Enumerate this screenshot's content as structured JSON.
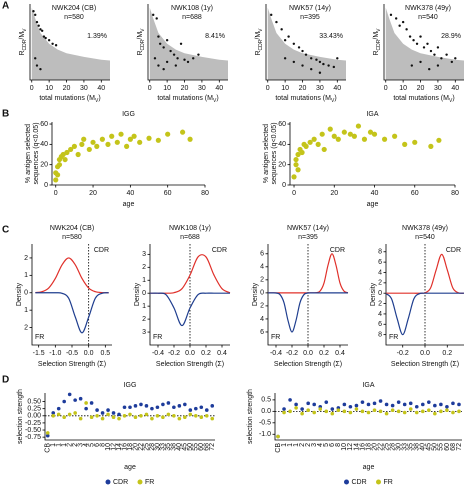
{
  "panel_labels": [
    "A",
    "B",
    "C",
    "D"
  ],
  "chart_data": [
    {
      "type": "scatter",
      "title": "NWK204 (CB)",
      "subtitle": "n=580",
      "annotation": "1.39%",
      "color": "#111111",
      "area_color": "#bdbdbd",
      "x": [
        1,
        2,
        3,
        4,
        5,
        6,
        7,
        8,
        10,
        12,
        14,
        3,
        5,
        2
      ],
      "values": [
        0.95,
        0.9,
        0.8,
        0.75,
        0.7,
        0.68,
        0.6,
        0.58,
        0.55,
        0.5,
        0.48,
        0.2,
        0.15,
        0.3
      ],
      "area": {
        "x": [
          0,
          2,
          5,
          10,
          15,
          20,
          30,
          40,
          45
        ],
        "values": [
          1.0,
          0.85,
          0.65,
          0.5,
          0.42,
          0.37,
          0.32,
          0.28,
          0.27
        ]
      },
      "xlim": [
        -1,
        45
      ],
      "ylim": [
        0,
        1.05
      ],
      "xticks": [
        0,
        10,
        20,
        30,
        40
      ],
      "x_label": [
        "total mutations (M",
        "V",
        ")"
      ],
      "y_label": [
        "R",
        "CDR",
        "/M",
        "V"
      ]
    },
    {
      "type": "scatter",
      "title": "NWK108 (1y)",
      "subtitle": "n=688",
      "annotation": "8.41%",
      "color": "#111111",
      "area_color": "#bdbdbd",
      "x": [
        2,
        4,
        5,
        6,
        8,
        10,
        12,
        14,
        16,
        18,
        20,
        22,
        25,
        28,
        5,
        8,
        10,
        15,
        3
      ],
      "values": [
        0.9,
        0.85,
        0.6,
        0.5,
        0.45,
        0.55,
        0.4,
        0.35,
        0.3,
        0.5,
        0.28,
        0.25,
        0.3,
        0.35,
        0.2,
        0.15,
        0.25,
        0.2,
        0.3
      ],
      "area": {
        "x": [
          0,
          2,
          5,
          10,
          15,
          20,
          30,
          40,
          45
        ],
        "values": [
          1.0,
          0.85,
          0.65,
          0.5,
          0.42,
          0.37,
          0.32,
          0.28,
          0.27
        ]
      },
      "xlim": [
        -1,
        45
      ],
      "ylim": [
        0,
        1.05
      ],
      "xticks": [
        0,
        10,
        20,
        30,
        40
      ],
      "x_label": [
        "total mutations (M",
        "V",
        ")"
      ],
      "y_label": [
        "R",
        "CDR",
        "/M",
        "V"
      ]
    },
    {
      "type": "scatter",
      "title": "NWK57 (14y)",
      "subtitle": "n=395",
      "annotation": "33.43%",
      "color": "#111111",
      "area_color": "#bdbdbd",
      "x": [
        2,
        5,
        8,
        10,
        12,
        15,
        18,
        20,
        22,
        25,
        28,
        30,
        32,
        35,
        38,
        40,
        10,
        15,
        20,
        25,
        30
      ],
      "values": [
        0.9,
        0.8,
        0.7,
        0.55,
        0.6,
        0.5,
        0.45,
        0.4,
        0.35,
        0.3,
        0.28,
        0.25,
        0.22,
        0.2,
        0.18,
        0.3,
        0.3,
        0.25,
        0.2,
        0.15,
        0.1
      ],
      "area": {
        "x": [
          0,
          2,
          5,
          10,
          15,
          20,
          30,
          40,
          45
        ],
        "values": [
          1.0,
          0.85,
          0.65,
          0.5,
          0.42,
          0.37,
          0.32,
          0.28,
          0.27
        ]
      },
      "xlim": [
        -1,
        45
      ],
      "ylim": [
        0,
        1.05
      ],
      "xticks": [
        0,
        10,
        20,
        30,
        40
      ],
      "x_label": [
        "total mutations (M",
        "V",
        ")"
      ],
      "y_label": [
        "R",
        "CDR",
        "/M",
        "V"
      ]
    },
    {
      "type": "scatter",
      "title": "NWK378 (49y)",
      "subtitle": "n=540",
      "annotation": "28.9%",
      "color": "#111111",
      "area_color": "#bdbdbd",
      "x": [
        3,
        6,
        8,
        10,
        12,
        14,
        16,
        18,
        20,
        22,
        24,
        26,
        28,
        30,
        32,
        35,
        38,
        40,
        15,
        20,
        25,
        30
      ],
      "values": [
        0.9,
        0.85,
        0.75,
        0.8,
        0.7,
        0.6,
        0.55,
        0.5,
        0.6,
        0.45,
        0.5,
        0.4,
        0.35,
        0.45,
        0.3,
        0.35,
        0.25,
        0.3,
        0.2,
        0.25,
        0.15,
        0.2
      ],
      "area": {
        "x": [
          0,
          2,
          5,
          10,
          15,
          20,
          30,
          40,
          45
        ],
        "values": [
          1.0,
          0.85,
          0.65,
          0.5,
          0.42,
          0.37,
          0.32,
          0.28,
          0.27
        ]
      },
      "xlim": [
        -1,
        45
      ],
      "ylim": [
        0,
        1.05
      ],
      "xticks": [
        0,
        10,
        20,
        30,
        40
      ],
      "x_label": [
        "total mutations (M",
        "V",
        ")"
      ],
      "y_label": [
        "R",
        "CDR",
        "/M",
        "V"
      ]
    },
    {
      "type": "scatter",
      "title": "IGG",
      "color": "#c4c41a",
      "x": [
        0,
        0,
        1,
        1,
        2,
        2,
        3,
        4,
        5,
        6,
        8,
        10,
        12,
        14,
        15,
        18,
        20,
        22,
        25,
        28,
        30,
        33,
        35,
        38,
        40,
        42,
        45,
        50,
        55,
        60,
        68,
        72
      ],
      "values": [
        5,
        12,
        10,
        18,
        20,
        25,
        28,
        30,
        25,
        32,
        35,
        38,
        30,
        40,
        45,
        35,
        42,
        38,
        45,
        40,
        48,
        42,
        50,
        38,
        45,
        48,
        42,
        46,
        44,
        50,
        52,
        45
      ],
      "xlim": [
        -2,
        80
      ],
      "ylim": [
        0,
        62
      ],
      "xticks": [
        0,
        20,
        40,
        60,
        80
      ],
      "yticks": [
        0,
        20,
        40,
        60
      ],
      "x_label": "age",
      "y_label": [
        "% antigen selected",
        "sequences (q<0.05)"
      ]
    },
    {
      "type": "scatter",
      "title": "IGA",
      "color": "#c4c41a",
      "x": [
        0,
        1,
        1,
        2,
        2,
        3,
        4,
        5,
        6,
        8,
        10,
        12,
        14,
        15,
        18,
        20,
        22,
        25,
        28,
        30,
        32,
        35,
        38,
        40,
        45,
        50,
        55,
        60,
        68,
        72
      ],
      "values": [
        8,
        20,
        25,
        15,
        30,
        35,
        32,
        40,
        38,
        42,
        45,
        40,
        50,
        35,
        55,
        48,
        45,
        52,
        50,
        48,
        58,
        45,
        52,
        50,
        45,
        48,
        40,
        42,
        38,
        44
      ],
      "xlim": [
        -2,
        80
      ],
      "ylim": [
        0,
        62
      ],
      "xticks": [
        0,
        20,
        40,
        60,
        80
      ],
      "yticks": [
        0,
        20,
        40,
        60
      ],
      "x_label": "age",
      "y_label": [
        "% antigen selected",
        "sequences (q<0.05)"
      ]
    },
    {
      "type": "line",
      "title": "NWK204 (CB)",
      "subtitle": "n=580",
      "vline": 0,
      "x": [
        -1.6,
        -1.4,
        -1.2,
        -1.0,
        -0.8,
        -0.6,
        -0.4,
        -0.2,
        0,
        0.2,
        0.4,
        0.6
      ],
      "series": [
        {
          "name": "CDR",
          "color": "#e0302a",
          "values": [
            0.01,
            0.06,
            0.27,
            0.82,
            1.6,
            2.0,
            1.6,
            0.82,
            0.27,
            0.06,
            0.01,
            0
          ]
        },
        {
          "name": "FR",
          "color": "#1f3e8f",
          "values": [
            0,
            0,
            0,
            0,
            -0.03,
            -0.31,
            -1.4,
            -2.3,
            -1.4,
            -0.31,
            -0.03,
            0
          ]
        }
      ],
      "xlim": [
        -1.7,
        0.7
      ],
      "ylim": [
        -3,
        2.8
      ],
      "xticks": [
        -1.5,
        {
          "value": -1,
          "label": "-1.0"
        },
        -0.5,
        {
          "value": 0,
          "label": "0.0"
        },
        0.5
      ],
      "yticks": [
        {
          "value": -2,
          "label": "2"
        },
        {
          "value": -1,
          "label": "1"
        },
        0,
        1,
        2
      ],
      "x_label": "Selection Strength (Σ)",
      "y_label": "Density"
    },
    {
      "type": "line",
      "title": "NWK108 (1y)",
      "subtitle": "n=688",
      "vline": 0,
      "x": [
        -0.5,
        -0.4,
        -0.3,
        -0.2,
        -0.1,
        0,
        0.1,
        0.2,
        0.3,
        0.4,
        0.5
      ],
      "series": [
        {
          "name": "CDR",
          "color": "#e0302a",
          "values": [
            0,
            0,
            0,
            0.04,
            0.35,
            1.4,
            2.8,
            2.8,
            1.4,
            0.35,
            0.04
          ]
        },
        {
          "name": "FR",
          "color": "#1f3e8f",
          "values": [
            0,
            0,
            -0.11,
            -1.14,
            -2.5,
            -1.14,
            -0.11,
            0,
            0,
            0,
            0
          ]
        }
      ],
      "xlim": [
        -0.5,
        0.5
      ],
      "ylim": [
        -4,
        3.8
      ],
      "xticks": [
        -0.4,
        -0.2,
        {
          "value": 0,
          "label": "0.0"
        },
        0.2,
        0.4
      ],
      "yticks": [
        {
          "value": -3,
          "label": "3"
        },
        {
          "value": -2,
          "label": "2"
        },
        {
          "value": -1,
          "label": "1"
        },
        0,
        1,
        2,
        3
      ],
      "x_label": "Selection Strength (Σ)",
      "y_label": "Density"
    },
    {
      "type": "line",
      "title": "NWK57 (14y)",
      "subtitle": "n=395",
      "vline": 0,
      "x": [
        -0.5,
        -0.45,
        -0.4,
        -0.35,
        -0.3,
        -0.25,
        -0.2,
        -0.15,
        -0.1,
        -0.05,
        0,
        0.05,
        0.1,
        0.15,
        0.2,
        0.25,
        0.3,
        0.35,
        0.4,
        0.45,
        0.5
      ],
      "series": [
        {
          "name": "CDR",
          "color": "#e0302a",
          "values": [
            0,
            0,
            0,
            0,
            0,
            0,
            0,
            0,
            0,
            0,
            0,
            0,
            0.02,
            0.26,
            1.5,
            4.24,
            6,
            4.24,
            1.5,
            0.26,
            0.02
          ]
        },
        {
          "name": "FR",
          "color": "#1f3e8f",
          "values": [
            0,
            0,
            -0.02,
            -0.26,
            -1.5,
            -4.24,
            -6,
            -4.24,
            -1.5,
            -0.26,
            -0.02,
            0,
            0,
            0,
            0,
            0,
            0,
            0,
            0,
            0,
            0
          ]
        }
      ],
      "xlim": [
        -0.5,
        0.5
      ],
      "ylim": [
        -8,
        7.5
      ],
      "xticks": [
        -0.4,
        -0.2,
        {
          "value": 0,
          "label": "0.0"
        },
        0.2,
        0.4
      ],
      "yticks": [
        {
          "value": -6,
          "label": "6"
        },
        {
          "value": -4,
          "label": "4"
        },
        {
          "value": -2,
          "label": "2"
        },
        0,
        2,
        4,
        6
      ],
      "x_label": "Selection Strength (Σ)",
      "y_label": "Density"
    },
    {
      "type": "line",
      "title": "NWK378 (49y)",
      "subtitle": "n=540",
      "vline": 0,
      "x": [
        -0.35,
        -0.3,
        -0.25,
        -0.2,
        -0.15,
        -0.1,
        -0.05,
        0,
        0.05,
        0.1,
        0.15,
        0.2,
        0.25,
        0.3,
        0.35
      ],
      "series": [
        {
          "name": "CDR",
          "color": "#e0302a",
          "values": [
            0,
            0,
            0,
            0,
            0,
            0,
            0,
            0.08,
            1.0,
            4.5,
            7.5,
            4.5,
            1.0,
            0.08,
            0
          ]
        },
        {
          "name": "FR",
          "color": "#1f3e8f",
          "values": [
            -0.09,
            -1.1,
            -4.9,
            -8,
            -4.9,
            -1.1,
            -0.09,
            0,
            0,
            0,
            0,
            0,
            0,
            0,
            0
          ]
        }
      ],
      "xlim": [
        -0.35,
        0.35
      ],
      "ylim": [
        -10,
        9.5
      ],
      "xticks": [
        -0.2,
        {
          "value": 0,
          "label": "0.0"
        },
        0.2
      ],
      "yticks": [
        {
          "value": -8,
          "label": "8"
        },
        {
          "value": -6,
          "label": "6"
        },
        {
          "value": -4,
          "label": "4"
        },
        {
          "value": -2,
          "label": "2"
        },
        0,
        2,
        4,
        6,
        8
      ],
      "x_label": "Selection Strength (Σ)",
      "y_label": "Density"
    },
    {
      "type": "dot",
      "title": "IGG",
      "hline": 0,
      "categories": [
        "CB",
        "1",
        "1",
        "1",
        "2",
        "2",
        "3",
        "4",
        "5",
        "6",
        "8",
        "10",
        "12",
        "14",
        "16",
        "18",
        "20",
        "22",
        "25",
        "28",
        "30",
        "33",
        "35",
        "38",
        "40",
        "45",
        "50",
        "55",
        "60",
        "68",
        "72"
      ],
      "series": [
        {
          "name": "CDR",
          "color": "#1e3c9b",
          "values": [
            -0.7,
            0.1,
            0.25,
            0.5,
            0.75,
            0.55,
            0.6,
            0.25,
            0.45,
            0.2,
            0.1,
            0.2,
            0.1,
            0.05,
            0.3,
            0.3,
            0.35,
            0.4,
            0.35,
            0.25,
            0.3,
            0.4,
            0.45,
            0.3,
            0.35,
            0.4,
            0.2,
            0.25,
            0.3,
            0.2,
            0.35
          ]
        },
        {
          "name": "FR",
          "color": "#c4c41a",
          "values": [
            -0.6,
            0.0,
            0.05,
            -0.05,
            0.05,
            0.1,
            -0.1,
            0.45,
            -0.05,
            0.0,
            -0.1,
            0.05,
            -0.05,
            -0.1,
            0.0,
            0.05,
            -0.05,
            0.0,
            0.05,
            -0.1,
            0.0,
            -0.05,
            0.05,
            0.0,
            -0.1,
            -0.05,
            0.05,
            0.0,
            -0.05,
            0.0,
            -0.1
          ]
        }
      ],
      "ylim": [
        -0.85,
        0.8
      ],
      "yticks": [
        -0.75,
        {
          "value": -0.5,
          "label": "-0.50"
        },
        -0.25,
        {
          "value": 0,
          "label": "0.00"
        },
        0.25,
        {
          "value": 0.5,
          "label": "0.50"
        }
      ],
      "x_label": "age",
      "y_label": "selection strength"
    },
    {
      "type": "dot",
      "title": "IGA",
      "hline": 0,
      "categories": [
        "CB",
        "1",
        "1",
        "1",
        "2",
        "2",
        "3",
        "4",
        "5",
        "6",
        "8",
        "10",
        "12",
        "14",
        "16",
        "18",
        "20",
        "22",
        "25",
        "28",
        "30",
        "33",
        "35",
        "38",
        "40",
        "45",
        "50",
        "55",
        "60",
        "68",
        "72"
      ],
      "series": [
        {
          "name": "CDR",
          "color": "#1e3c9b",
          "values": [
            -1.1,
            0.1,
            0.5,
            0.3,
            0.1,
            0.35,
            0.3,
            0.2,
            0.4,
            0.1,
            0.15,
            0.3,
            0.2,
            0.25,
            0.4,
            0.3,
            0.35,
            0.45,
            0.3,
            0.25,
            0.4,
            0.3,
            0.35,
            0.2,
            0.3,
            0.4,
            0.25,
            0.3,
            0.2,
            0.35,
            0.3
          ]
        },
        {
          "name": "FR",
          "color": "#c4c41a",
          "values": [
            -1.1,
            -0.05,
            0.0,
            0.15,
            -0.1,
            0.05,
            -0.05,
            0.1,
            0.0,
            -0.1,
            0.05,
            0.0,
            -0.05,
            0.1,
            0.0,
            -0.05,
            0.05,
            0.0,
            -0.1,
            0.05,
            0.0,
            -0.05,
            0.1,
            -0.05,
            0.0,
            0.05,
            -0.1,
            0.0,
            0.05,
            -0.05,
            0.0
          ]
        }
      ],
      "ylim": [
        -1.25,
        0.8
      ],
      "yticks": [
        {
          "value": -1,
          "label": "-1.0"
        },
        -0.5,
        {
          "value": 0,
          "label": "0.0"
        },
        0.5
      ],
      "x_label": "age",
      "y_label": "selection strength"
    }
  ]
}
